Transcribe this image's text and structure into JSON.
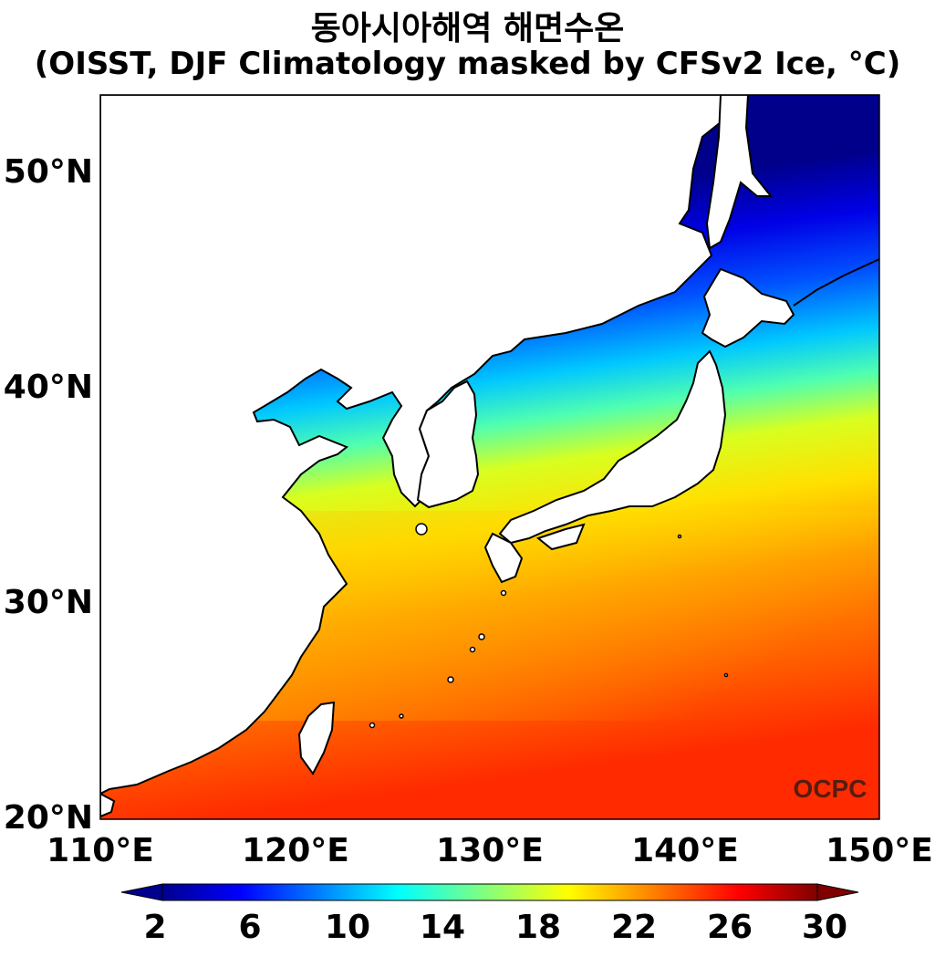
{
  "title": {
    "line1": "동아시아해역 해면수온",
    "line2": "(OISST, DJF Climatology masked by CFSv2 Ice, °C)"
  },
  "map": {
    "lon_range": [
      110,
      150
    ],
    "lat_range": [
      20,
      53
    ],
    "x_ticks": [
      "110°E",
      "120°E",
      "130°E",
      "140°E",
      "150°E"
    ],
    "y_ticks": [
      "20°N",
      "30°N",
      "40°N",
      "50°N"
    ],
    "watermark": "OCPC",
    "colormap": "jet",
    "colors": {
      "ocean_warm": "#ff3a00",
      "ocean_cold": "#00008a",
      "land": "#ffffff",
      "coastline": "#000000"
    }
  },
  "colorbar": {
    "range": [
      0,
      32
    ],
    "labels": [
      "2",
      "6",
      "10",
      "14",
      "18",
      "22",
      "26",
      "30"
    ],
    "extend": "both"
  }
}
